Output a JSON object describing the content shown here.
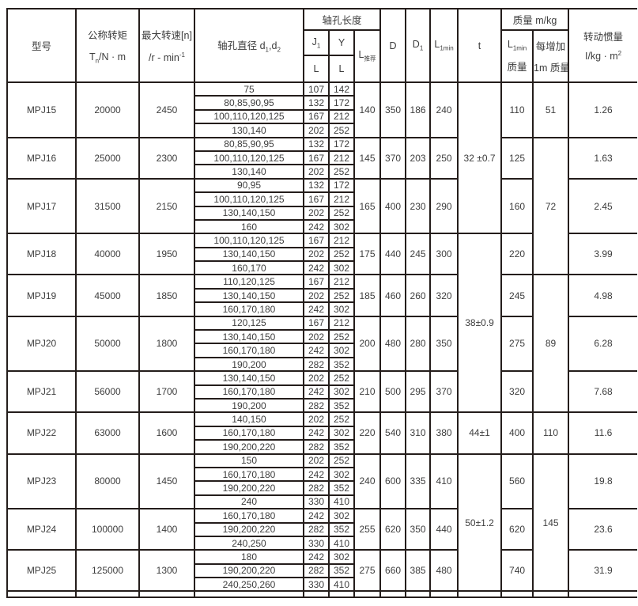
{
  "colors": {
    "border": "#241d1b",
    "text": "#3d3d3d",
    "background": "#ffffff"
  },
  "table": {
    "headers": {
      "model": "型号",
      "torque": {
        "line1": "公称转矩",
        "sym": "T",
        "sub": "n",
        "unit": "/N · m"
      },
      "speed": {
        "line1": "最大转速[n]",
        "unit": "/r - min",
        "sup": "-1"
      },
      "bore": {
        "label": "轴孔直径 d",
        "sub1": "1",
        "comma": ",d",
        "sub2": "2"
      },
      "bore_len": "轴孔长度",
      "j1": {
        "sym": "J",
        "sub": "1"
      },
      "y": "Y",
      "l": "L",
      "l_rec": {
        "sym": "L",
        "sub": "推荐"
      },
      "d": "D",
      "d1": {
        "sym": "D",
        "sub": "1"
      },
      "l1min": {
        "sym": "L",
        "sub": "1min"
      },
      "t": "t",
      "mass": "质量  m/kg",
      "mass_l1min": {
        "sym": "L",
        "sub": "1min",
        "label": "质量"
      },
      "mass_per": {
        "line1": "每增加",
        "line2": "1m 质量"
      },
      "inertia": {
        "line1": "转动惯量",
        "line2": "I/kg · m",
        "sup": "2"
      }
    },
    "blocks": [
      {
        "model": "MPJ15",
        "torque": "20000",
        "speed": "2450",
        "bores": [
          {
            "d": "75",
            "j1": "107",
            "y": "142"
          },
          {
            "d": "80,85,90,95",
            "j1": "132",
            "y": "172"
          },
          {
            "d": "100,110,120,125",
            "j1": "167",
            "y": "212"
          },
          {
            "d": "130,140",
            "j1": "202",
            "y": "252"
          }
        ],
        "l_rec": "140",
        "D": "350",
        "D1": "186",
        "L1min": "240",
        "mass": "110",
        "inertia": "1.26"
      },
      {
        "model": "MPJ16",
        "torque": "25000",
        "speed": "2300",
        "bores": [
          {
            "d": "80,85,90,95",
            "j1": "132",
            "y": "172"
          },
          {
            "d": "100,110,120,125",
            "j1": "167",
            "y": "212"
          },
          {
            "d": "130,140",
            "j1": "202",
            "y": "252"
          }
        ],
        "l_rec": "145",
        "D": "370",
        "D1": "203",
        "L1min": "250",
        "mass": "125",
        "inertia": "1.63"
      },
      {
        "model": "MPJ17",
        "torque": "31500",
        "speed": "2150",
        "bores": [
          {
            "d": "90,95",
            "j1": "132",
            "y": "172"
          },
          {
            "d": "100,110,120,125",
            "j1": "167",
            "y": "212"
          },
          {
            "d": "130,140,150",
            "j1": "202",
            "y": "252"
          },
          {
            "d": "160",
            "j1": "242",
            "y": "302"
          }
        ],
        "l_rec": "165",
        "D": "400",
        "D1": "230",
        "L1min": "290",
        "mass": "160",
        "inertia": "2.45"
      },
      {
        "model": "MPJ18",
        "torque": "40000",
        "speed": "1950",
        "bores": [
          {
            "d": "100,110,120,125",
            "j1": "167",
            "y": "212"
          },
          {
            "d": "130,140,150",
            "j1": "202",
            "y": "252"
          },
          {
            "d": "160,170",
            "j1": "242",
            "y": "302"
          }
        ],
        "l_rec": "175",
        "D": "440",
        "D1": "245",
        "L1min": "300",
        "mass": "220",
        "inertia": "3.99"
      },
      {
        "model": "MPJ19",
        "torque": "45000",
        "speed": "1850",
        "bores": [
          {
            "d": "110,120,125",
            "j1": "167",
            "y": "212"
          },
          {
            "d": "130,140,150",
            "j1": "202",
            "y": "252"
          },
          {
            "d": "160,170,180",
            "j1": "242",
            "y": "302"
          }
        ],
        "l_rec": "185",
        "D": "460",
        "D1": "260",
        "L1min": "320",
        "mass": "245",
        "inertia": "4.98"
      },
      {
        "model": "MPJ20",
        "torque": "50000",
        "speed": "1800",
        "bores": [
          {
            "d": "120,125",
            "j1": "167",
            "y": "212"
          },
          {
            "d": "130,140,150",
            "j1": "202",
            "y": "252"
          },
          {
            "d": "160,170,180",
            "j1": "242",
            "y": "302"
          },
          {
            "d": "190,200",
            "j1": "282",
            "y": "352"
          }
        ],
        "l_rec": "200",
        "D": "480",
        "D1": "280",
        "L1min": "350",
        "mass": "275",
        "inertia": "6.28"
      },
      {
        "model": "MPJ21",
        "torque": "56000",
        "speed": "1700",
        "bores": [
          {
            "d": "130,140,150",
            "j1": "202",
            "y": "252"
          },
          {
            "d": "160,170,180",
            "j1": "242",
            "y": "302"
          },
          {
            "d": "190,200",
            "j1": "282",
            "y": "352"
          }
        ],
        "l_rec": "210",
        "D": "500",
        "D1": "295",
        "L1min": "370",
        "mass": "320",
        "inertia": "7.68"
      },
      {
        "model": "MPJ22",
        "torque": "63000",
        "speed": "1600",
        "bores": [
          {
            "d": "140,150",
            "j1": "202",
            "y": "252"
          },
          {
            "d": "160,170,180",
            "j1": "242",
            "y": "302"
          },
          {
            "d": "190,200,220",
            "j1": "282",
            "y": "352"
          }
        ],
        "l_rec": "220",
        "D": "540",
        "D1": "310",
        "L1min": "380",
        "mass": "400",
        "inertia": "11.6"
      },
      {
        "model": "MPJ23",
        "torque": "80000",
        "speed": "1450",
        "bores": [
          {
            "d": "150",
            "j1": "202",
            "y": "252"
          },
          {
            "d": "160,170,180",
            "j1": "242",
            "y": "302"
          },
          {
            "d": "190,200,220",
            "j1": "282",
            "y": "352"
          },
          {
            "d": "240",
            "j1": "330",
            "y": "410"
          }
        ],
        "l_rec": "240",
        "D": "600",
        "D1": "335",
        "L1min": "410",
        "mass": "560",
        "inertia": "19.8"
      },
      {
        "model": "MPJ24",
        "torque": "100000",
        "speed": "1400",
        "bores": [
          {
            "d": "160,170,180",
            "j1": "242",
            "y": "302"
          },
          {
            "d": "190,200,220",
            "j1": "282",
            "y": "352"
          },
          {
            "d": "240,250",
            "j1": "330",
            "y": "410"
          }
        ],
        "l_rec": "255",
        "D": "620",
        "D1": "350",
        "L1min": "440",
        "mass": "620",
        "inertia": "23.6"
      },
      {
        "model": "MPJ25",
        "torque": "125000",
        "speed": "1300",
        "bores": [
          {
            "d": "180",
            "j1": "242",
            "y": "302"
          },
          {
            "d": "190,200,220",
            "j1": "282",
            "y": "352"
          },
          {
            "d": "240,250,260",
            "j1": "330",
            "y": "410"
          }
        ],
        "l_rec": "275",
        "D": "660",
        "D1": "385",
        "L1min": "480",
        "mass": "740",
        "inertia": "31.9"
      }
    ],
    "t_groups": [
      {
        "label": "32 ±0.7",
        "blocks": [
          0,
          1,
          2
        ]
      },
      {
        "label": "38±0.9",
        "blocks": [
          3,
          4,
          5,
          6
        ]
      },
      {
        "label": "44±1",
        "blocks": [
          7
        ]
      },
      {
        "label": "50±1.2",
        "blocks": [
          8,
          9,
          10
        ]
      }
    ],
    "mass_per_groups": [
      {
        "label": "51",
        "blocks": [
          0
        ]
      },
      {
        "label": "72",
        "blocks": [
          1,
          2,
          3
        ]
      },
      {
        "label": "89",
        "blocks": [
          4,
          5,
          6
        ]
      },
      {
        "label": "110",
        "blocks": [
          7
        ]
      },
      {
        "label": "145",
        "blocks": [
          8,
          9,
          10
        ]
      }
    ]
  }
}
